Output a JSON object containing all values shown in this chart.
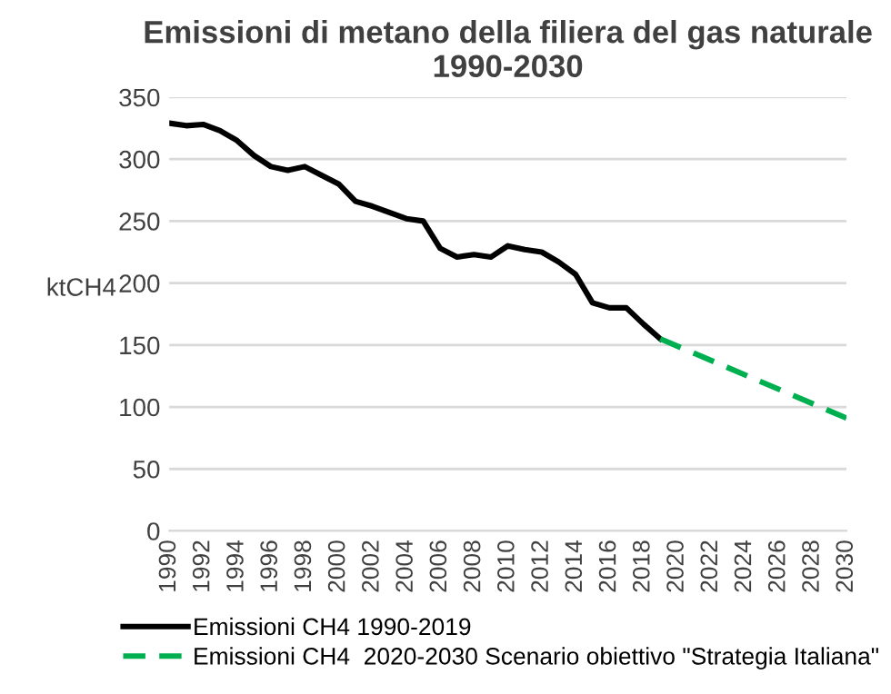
{
  "chart_data": {
    "type": "line",
    "title": "Emissioni di metano della filiera del gas naturale\n1990-2030",
    "ylabel": "ktCH4",
    "series": [
      {
        "name": "Emissioni CH4 1990-2019",
        "color": "#000000",
        "line_style": "solid",
        "x": [
          1990,
          1991,
          1992,
          1993,
          1994,
          1995,
          1996,
          1997,
          1998,
          1999,
          2000,
          2001,
          2002,
          2003,
          2004,
          2005,
          2006,
          2007,
          2008,
          2009,
          2010,
          2011,
          2012,
          2013,
          2014,
          2015,
          2016,
          2017,
          2018,
          2019
        ],
        "values": [
          329,
          327,
          328,
          323,
          315,
          303,
          294,
          291,
          294,
          287,
          280,
          266,
          262,
          257,
          252,
          250,
          228,
          221,
          223,
          221,
          230,
          227,
          225,
          217,
          207,
          184,
          180,
          180,
          167,
          155
        ]
      },
      {
        "name": "Emissioni CH4  2020-2030 Scenario obiettivo \"Strategia Italiana\"",
        "color": "#00b050",
        "line_style": "dashed",
        "x": [
          2019,
          2030
        ],
        "values": [
          155,
          91
        ]
      }
    ],
    "xlim": [
      1990,
      2030
    ],
    "xticks": [
      1990,
      1992,
      1994,
      1996,
      1998,
      2000,
      2002,
      2004,
      2006,
      2008,
      2010,
      2012,
      2014,
      2016,
      2018,
      2020,
      2022,
      2024,
      2026,
      2028,
      2030
    ],
    "ylim": [
      0,
      350
    ],
    "yticks": [
      0,
      50,
      100,
      150,
      200,
      250,
      300,
      350
    ],
    "grid": "y",
    "legend": "bottom",
    "marker": "none"
  }
}
